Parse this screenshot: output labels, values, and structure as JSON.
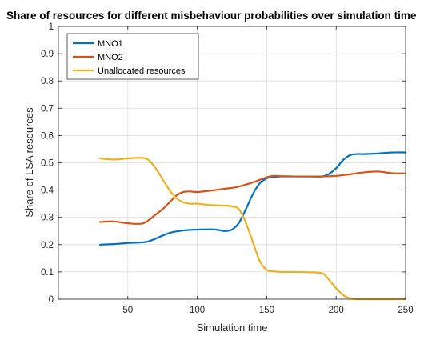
{
  "chart_data": {
    "type": "line",
    "title": "Share of resources for different misbehaviour probabilities over simulation time",
    "xlabel": "Simulation time",
    "ylabel": "Share of LSA resources",
    "xlim": [
      0,
      250
    ],
    "ylim": [
      0,
      1
    ],
    "xticks": [
      50,
      100,
      150,
      200,
      250
    ],
    "yticks": [
      0,
      0.1,
      0.2,
      0.3,
      0.4,
      0.5,
      0.6,
      0.7,
      0.8,
      0.9,
      1
    ],
    "grid": true,
    "legend_position": "top-left",
    "series": [
      {
        "name": "MNO1",
        "color": "#0072BD",
        "x": [
          30,
          40,
          50,
          60,
          65,
          70,
          80,
          90,
          100,
          110,
          115,
          120,
          125,
          130,
          135,
          140,
          145,
          150,
          155,
          160,
          170,
          180,
          190,
          195,
          200,
          205,
          210,
          215,
          220,
          230,
          240,
          250
        ],
        "y": [
          0.2,
          0.202,
          0.206,
          0.208,
          0.212,
          0.222,
          0.243,
          0.252,
          0.255,
          0.256,
          0.254,
          0.25,
          0.255,
          0.28,
          0.33,
          0.385,
          0.425,
          0.443,
          0.448,
          0.45,
          0.45,
          0.45,
          0.45,
          0.46,
          0.48,
          0.51,
          0.528,
          0.532,
          0.532,
          0.534,
          0.538,
          0.538
        ]
      },
      {
        "name": "MNO2",
        "color": "#D95319",
        "x": [
          30,
          40,
          50,
          60,
          65,
          70,
          75,
          80,
          85,
          90,
          95,
          100,
          110,
          120,
          125,
          130,
          140,
          150,
          155,
          160,
          170,
          180,
          190,
          200,
          210,
          220,
          230,
          240,
          250
        ],
        "y": [
          0.283,
          0.285,
          0.278,
          0.277,
          0.29,
          0.31,
          0.33,
          0.355,
          0.38,
          0.393,
          0.395,
          0.393,
          0.398,
          0.405,
          0.408,
          0.413,
          0.428,
          0.447,
          0.452,
          0.451,
          0.45,
          0.45,
          0.45,
          0.452,
          0.458,
          0.465,
          0.468,
          0.462,
          0.461
        ]
      },
      {
        "name": "Unallocated resources",
        "color": "#EDB120",
        "x": [
          30,
          40,
          50,
          60,
          65,
          70,
          75,
          80,
          85,
          90,
          95,
          100,
          110,
          120,
          125,
          130,
          135,
          140,
          145,
          150,
          155,
          160,
          170,
          180,
          190,
          195,
          200,
          205,
          210,
          215,
          220,
          230,
          240,
          250
        ],
        "y": [
          0.516,
          0.512,
          0.516,
          0.518,
          0.51,
          0.48,
          0.44,
          0.4,
          0.37,
          0.355,
          0.35,
          0.35,
          0.345,
          0.343,
          0.34,
          0.33,
          0.28,
          0.21,
          0.14,
          0.107,
          0.102,
          0.1,
          0.1,
          0.099,
          0.095,
          0.07,
          0.04,
          0.015,
          0.003,
          0.0,
          0.0,
          0.0,
          0.0,
          0.0
        ]
      }
    ]
  }
}
